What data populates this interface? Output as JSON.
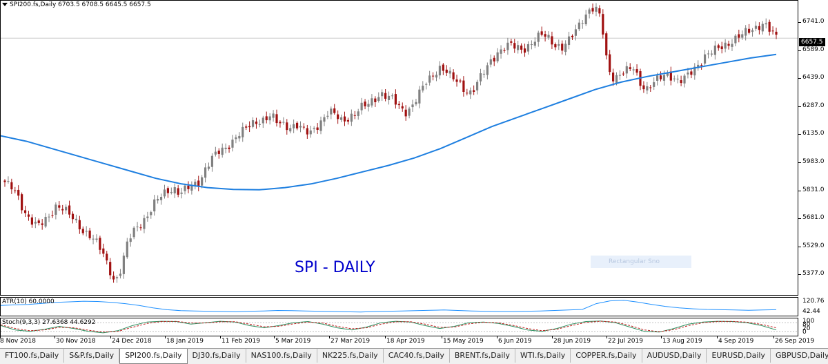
{
  "symbol_info": "SPI200.fs,Daily  6703.5 6708.5 6645.5 6657.5",
  "watermark": "SPI - DAILY",
  "ghost_label": "Rectangular Sno",
  "current_price": "6657.5",
  "colors": {
    "bull": "#808080",
    "bear": "#a01010",
    "ma": "#1e7fe0",
    "atr": "#1e90ff",
    "stoch_main": "#2d8f5f",
    "stoch_signal": "#c02020"
  },
  "price_axis": [
    "6741.0",
    "6589.0",
    "6439.0",
    "6287.0",
    "6135.0",
    "5983.0",
    "5831.0",
    "5681.0",
    "5529.0",
    "5377.0"
  ],
  "atr": {
    "label": "ATR(10) 60.0000",
    "axis": [
      "120.76",
      "42.44"
    ]
  },
  "stoch": {
    "label": "Stoch(9,3,3) 27.6368 44.6292",
    "axis": [
      "100",
      "80",
      "20",
      "0"
    ]
  },
  "date_axis": [
    "8 Nov 2018",
    "30 Nov 2018",
    "24 Dec 2018",
    "18 Jan 2019",
    "11 Feb 2019",
    "5 Mar 2019",
    "27 Mar 2019",
    "18 Apr 2019",
    "15 May 2019",
    "6 Jun 2019",
    "28 Jun 2019",
    "22 Jul 2019",
    "13 Aug 2019",
    "4 Sep 2019",
    "26 Sep 2019"
  ],
  "tabs": [
    "FT100.fs,Daily",
    "S&P.fs,Daily",
    "SPI200.fs,Daily",
    "DJ30.fs,Daily",
    "NAS100.fs,Daily",
    "NK225.fs,Daily",
    "CAC40.fs,Daily",
    "BRENT.fs,Daily",
    "WTI.fs,Daily",
    "COPPER.fs,Daily",
    "AUDUSD,Daily",
    "EURUSD,Daily",
    "GBPUSD,Daily"
  ],
  "active_tab": 2,
  "chart_data": {
    "type": "candlestick",
    "price_range": [
      5300,
      6830
    ],
    "close_path": [
      5880,
      5850,
      5800,
      5720,
      5680,
      5640,
      5660,
      5700,
      5760,
      5740,
      5700,
      5660,
      5620,
      5600,
      5560,
      5500,
      5420,
      5340,
      5420,
      5560,
      5620,
      5660,
      5700,
      5760,
      5800,
      5830,
      5850,
      5820,
      5840,
      5860,
      5880,
      5960,
      6010,
      6040,
      6060,
      6100,
      6140,
      6160,
      6190,
      6210,
      6220,
      6240,
      6200,
      6190,
      6180,
      6190,
      6160,
      6140,
      6180,
      6220,
      6260,
      6240,
      6210,
      6230,
      6250,
      6280,
      6300,
      6330,
      6360,
      6340,
      6320,
      6280,
      6260,
      6300,
      6360,
      6420,
      6460,
      6500,
      6480,
      6440,
      6420,
      6380,
      6360,
      6420,
      6480,
      6540,
      6580,
      6600,
      6620,
      6610,
      6600,
      6620,
      6650,
      6680,
      6660,
      6620,
      6600,
      6640,
      6700,
      6760,
      6800,
      6820,
      6760,
      6500,
      6440,
      6460,
      6480,
      6500,
      6420,
      6380,
      6410,
      6440,
      6470,
      6450,
      6420,
      6440,
      6480,
      6520,
      6560,
      6580,
      6600,
      6620,
      6640,
      6660,
      6680,
      6700,
      6720,
      6740,
      6700,
      6658
    ],
    "ma_path": [
      6130,
      6100,
      6060,
      6020,
      5980,
      5940,
      5900,
      5870,
      5850,
      5840,
      5838,
      5850,
      5870,
      5900,
      5935,
      5970,
      6010,
      6060,
      6120,
      6180,
      6230,
      6280,
      6330,
      6380,
      6420,
      6450,
      6475,
      6500,
      6525,
      6550,
      6570
    ],
    "atr_range": [
      30,
      130
    ],
    "atr_path": [
      88,
      92,
      95,
      102,
      108,
      112,
      116,
      114,
      108,
      100,
      88,
      72,
      60,
      54,
      52,
      50,
      48,
      46,
      50,
      52,
      55,
      54,
      52,
      50,
      48,
      46,
      45,
      48,
      50,
      52,
      54,
      56,
      58,
      55,
      52,
      50,
      48,
      48,
      50,
      52,
      55,
      58,
      62,
      100,
      118,
      122,
      110,
      95,
      82,
      72,
      66,
      62,
      60,
      58,
      56,
      58,
      60
    ],
    "stoch_main": [
      60,
      30,
      20,
      35,
      55,
      40,
      20,
      10,
      25,
      60,
      85,
      90,
      88,
      70,
      80,
      90,
      85,
      60,
      45,
      60,
      80,
      88,
      70,
      45,
      30,
      50,
      80,
      90,
      85,
      60,
      40,
      55,
      80,
      85,
      75,
      55,
      30,
      20,
      40,
      70,
      88,
      92,
      80,
      50,
      20,
      15,
      40,
      70,
      85,
      90,
      88,
      80,
      60,
      30
    ],
    "stoch_signal": [
      65,
      40,
      25,
      30,
      48,
      45,
      28,
      15,
      20,
      48,
      75,
      88,
      89,
      78,
      78,
      86,
      87,
      70,
      52,
      55,
      72,
      84,
      78,
      55,
      38,
      45,
      70,
      86,
      87,
      70,
      48,
      50,
      72,
      83,
      79,
      62,
      40,
      25,
      35,
      60,
      82,
      90,
      85,
      60,
      30,
      18,
      32,
      60,
      80,
      88,
      89,
      84,
      68,
      45
    ]
  }
}
